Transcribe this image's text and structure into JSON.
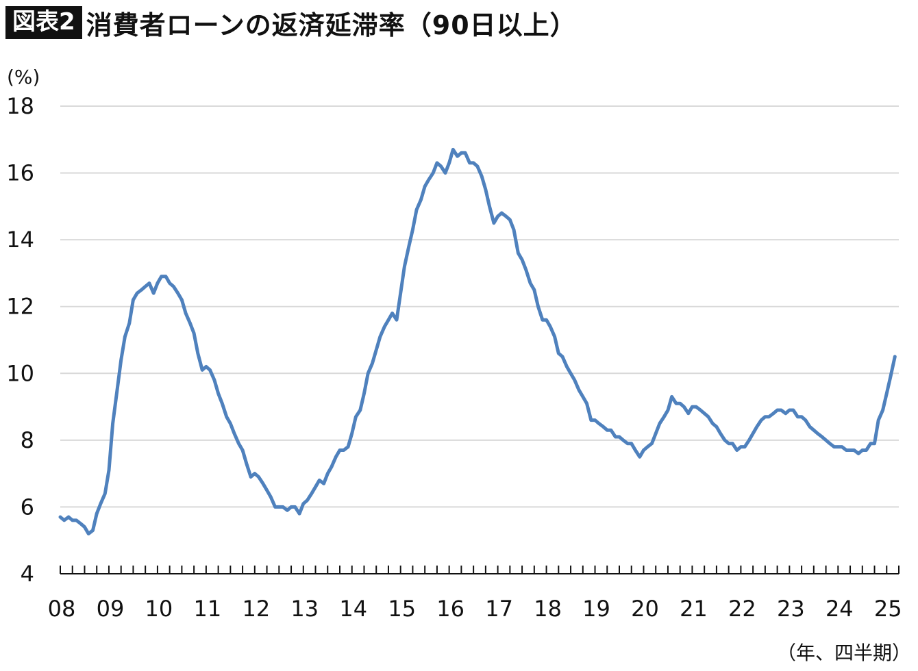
{
  "figure_label": "図表2",
  "chart_data": {
    "type": "line",
    "title": "消費者ローンの返済延滞率（90日以上）",
    "ylabel": "(%)",
    "xlabel": "（年、四半期）",
    "ylim": [
      4,
      18
    ],
    "yticks": [
      4,
      6,
      8,
      10,
      12,
      14,
      16,
      18
    ],
    "xlim": [
      2008.0,
      2025.25
    ],
    "xtick_labels": [
      "08",
      "09",
      "10",
      "11",
      "12",
      "13",
      "14",
      "15",
      "16",
      "17",
      "18",
      "19",
      "20",
      "21",
      "22",
      "23",
      "24",
      "25"
    ],
    "grid": true,
    "line_color": "#4f81bd",
    "series": [
      {
        "name": "",
        "points": [
          [
            2008.0,
            5.7
          ],
          [
            2008.08,
            5.6
          ],
          [
            2008.17,
            5.7
          ],
          [
            2008.25,
            5.6
          ],
          [
            2008.33,
            5.6
          ],
          [
            2008.42,
            5.5
          ],
          [
            2008.5,
            5.4
          ],
          [
            2008.58,
            5.2
          ],
          [
            2008.67,
            5.3
          ],
          [
            2008.75,
            5.8
          ],
          [
            2008.83,
            6.1
          ],
          [
            2008.92,
            6.4
          ],
          [
            2009.0,
            7.1
          ],
          [
            2009.08,
            8.5
          ],
          [
            2009.17,
            9.5
          ],
          [
            2009.25,
            10.4
          ],
          [
            2009.33,
            11.1
          ],
          [
            2009.42,
            11.5
          ],
          [
            2009.5,
            12.2
          ],
          [
            2009.58,
            12.4
          ],
          [
            2009.67,
            12.5
          ],
          [
            2009.75,
            12.6
          ],
          [
            2009.83,
            12.7
          ],
          [
            2009.92,
            12.4
          ],
          [
            2010.0,
            12.7
          ],
          [
            2010.08,
            12.9
          ],
          [
            2010.17,
            12.9
          ],
          [
            2010.25,
            12.7
          ],
          [
            2010.33,
            12.6
          ],
          [
            2010.42,
            12.4
          ],
          [
            2010.5,
            12.2
          ],
          [
            2010.58,
            11.8
          ],
          [
            2010.67,
            11.5
          ],
          [
            2010.75,
            11.2
          ],
          [
            2010.83,
            10.6
          ],
          [
            2010.92,
            10.1
          ],
          [
            2011.0,
            10.2
          ],
          [
            2011.08,
            10.1
          ],
          [
            2011.17,
            9.8
          ],
          [
            2011.25,
            9.4
          ],
          [
            2011.33,
            9.1
          ],
          [
            2011.42,
            8.7
          ],
          [
            2011.5,
            8.5
          ],
          [
            2011.58,
            8.2
          ],
          [
            2011.67,
            7.9
          ],
          [
            2011.75,
            7.7
          ],
          [
            2011.83,
            7.3
          ],
          [
            2011.92,
            6.9
          ],
          [
            2012.0,
            7.0
          ],
          [
            2012.08,
            6.9
          ],
          [
            2012.17,
            6.7
          ],
          [
            2012.25,
            6.5
          ],
          [
            2012.33,
            6.3
          ],
          [
            2012.42,
            6.0
          ],
          [
            2012.5,
            6.0
          ],
          [
            2012.58,
            6.0
          ],
          [
            2012.67,
            5.9
          ],
          [
            2012.75,
            6.0
          ],
          [
            2012.83,
            6.0
          ],
          [
            2012.92,
            5.8
          ],
          [
            2013.0,
            6.1
          ],
          [
            2013.08,
            6.2
          ],
          [
            2013.17,
            6.4
          ],
          [
            2013.25,
            6.6
          ],
          [
            2013.33,
            6.8
          ],
          [
            2013.42,
            6.7
          ],
          [
            2013.5,
            7.0
          ],
          [
            2013.58,
            7.2
          ],
          [
            2013.67,
            7.5
          ],
          [
            2013.75,
            7.7
          ],
          [
            2013.83,
            7.7
          ],
          [
            2013.92,
            7.8
          ],
          [
            2014.0,
            8.2
          ],
          [
            2014.08,
            8.7
          ],
          [
            2014.17,
            8.9
          ],
          [
            2014.25,
            9.4
          ],
          [
            2014.33,
            10.0
          ],
          [
            2014.42,
            10.3
          ],
          [
            2014.5,
            10.7
          ],
          [
            2014.58,
            11.1
          ],
          [
            2014.67,
            11.4
          ],
          [
            2014.75,
            11.6
          ],
          [
            2014.83,
            11.8
          ],
          [
            2014.92,
            11.6
          ],
          [
            2015.0,
            12.4
          ],
          [
            2015.08,
            13.2
          ],
          [
            2015.17,
            13.8
          ],
          [
            2015.25,
            14.3
          ],
          [
            2015.33,
            14.9
          ],
          [
            2015.42,
            15.2
          ],
          [
            2015.5,
            15.6
          ],
          [
            2015.58,
            15.8
          ],
          [
            2015.67,
            16.0
          ],
          [
            2015.75,
            16.3
          ],
          [
            2015.83,
            16.2
          ],
          [
            2015.92,
            16.0
          ],
          [
            2016.0,
            16.3
          ],
          [
            2016.08,
            16.7
          ],
          [
            2016.17,
            16.5
          ],
          [
            2016.25,
            16.6
          ],
          [
            2016.33,
            16.6
          ],
          [
            2016.42,
            16.3
          ],
          [
            2016.5,
            16.3
          ],
          [
            2016.58,
            16.2
          ],
          [
            2016.67,
            15.9
          ],
          [
            2016.75,
            15.5
          ],
          [
            2016.83,
            15.0
          ],
          [
            2016.92,
            14.5
          ],
          [
            2017.0,
            14.7
          ],
          [
            2017.08,
            14.8
          ],
          [
            2017.17,
            14.7
          ],
          [
            2017.25,
            14.6
          ],
          [
            2017.33,
            14.3
          ],
          [
            2017.42,
            13.6
          ],
          [
            2017.5,
            13.4
          ],
          [
            2017.58,
            13.1
          ],
          [
            2017.67,
            12.7
          ],
          [
            2017.75,
            12.5
          ],
          [
            2017.83,
            12.0
          ],
          [
            2017.92,
            11.6
          ],
          [
            2018.0,
            11.6
          ],
          [
            2018.08,
            11.4
          ],
          [
            2018.17,
            11.1
          ],
          [
            2018.25,
            10.6
          ],
          [
            2018.33,
            10.5
          ],
          [
            2018.42,
            10.2
          ],
          [
            2018.5,
            10.0
          ],
          [
            2018.58,
            9.8
          ],
          [
            2018.67,
            9.5
          ],
          [
            2018.75,
            9.3
          ],
          [
            2018.83,
            9.1
          ],
          [
            2018.92,
            8.6
          ],
          [
            2019.0,
            8.6
          ],
          [
            2019.08,
            8.5
          ],
          [
            2019.17,
            8.4
          ],
          [
            2019.25,
            8.3
          ],
          [
            2019.33,
            8.3
          ],
          [
            2019.42,
            8.1
          ],
          [
            2019.5,
            8.1
          ],
          [
            2019.58,
            8.0
          ],
          [
            2019.67,
            7.9
          ],
          [
            2019.75,
            7.9
          ],
          [
            2019.83,
            7.7
          ],
          [
            2019.92,
            7.5
          ],
          [
            2020.0,
            7.7
          ],
          [
            2020.08,
            7.8
          ],
          [
            2020.17,
            7.9
          ],
          [
            2020.25,
            8.2
          ],
          [
            2020.33,
            8.5
          ],
          [
            2020.42,
            8.7
          ],
          [
            2020.5,
            8.9
          ],
          [
            2020.58,
            9.3
          ],
          [
            2020.67,
            9.1
          ],
          [
            2020.75,
            9.1
          ],
          [
            2020.83,
            9.0
          ],
          [
            2020.92,
            8.8
          ],
          [
            2021.0,
            9.0
          ],
          [
            2021.08,
            9.0
          ],
          [
            2021.17,
            8.9
          ],
          [
            2021.25,
            8.8
          ],
          [
            2021.33,
            8.7
          ],
          [
            2021.42,
            8.5
          ],
          [
            2021.5,
            8.4
          ],
          [
            2021.58,
            8.2
          ],
          [
            2021.67,
            8.0
          ],
          [
            2021.75,
            7.9
          ],
          [
            2021.83,
            7.9
          ],
          [
            2021.92,
            7.7
          ],
          [
            2022.0,
            7.8
          ],
          [
            2022.08,
            7.8
          ],
          [
            2022.17,
            8.0
          ],
          [
            2022.25,
            8.2
          ],
          [
            2022.33,
            8.4
          ],
          [
            2022.42,
            8.6
          ],
          [
            2022.5,
            8.7
          ],
          [
            2022.58,
            8.7
          ],
          [
            2022.67,
            8.8
          ],
          [
            2022.75,
            8.9
          ],
          [
            2022.83,
            8.9
          ],
          [
            2022.92,
            8.8
          ],
          [
            2023.0,
            8.9
          ],
          [
            2023.08,
            8.9
          ],
          [
            2023.17,
            8.7
          ],
          [
            2023.25,
            8.7
          ],
          [
            2023.33,
            8.6
          ],
          [
            2023.42,
            8.4
          ],
          [
            2023.5,
            8.3
          ],
          [
            2023.58,
            8.2
          ],
          [
            2023.67,
            8.1
          ],
          [
            2023.75,
            8.0
          ],
          [
            2023.83,
            7.9
          ],
          [
            2023.92,
            7.8
          ],
          [
            2024.0,
            7.8
          ],
          [
            2024.08,
            7.8
          ],
          [
            2024.17,
            7.7
          ],
          [
            2024.25,
            7.7
          ],
          [
            2024.33,
            7.7
          ],
          [
            2024.42,
            7.6
          ],
          [
            2024.5,
            7.7
          ],
          [
            2024.58,
            7.7
          ],
          [
            2024.67,
            7.9
          ],
          [
            2024.75,
            7.9
          ],
          [
            2024.83,
            8.6
          ],
          [
            2024.92,
            8.9
          ],
          [
            2025.0,
            9.4
          ],
          [
            2025.08,
            9.9
          ],
          [
            2025.17,
            10.5
          ]
        ]
      }
    ]
  }
}
